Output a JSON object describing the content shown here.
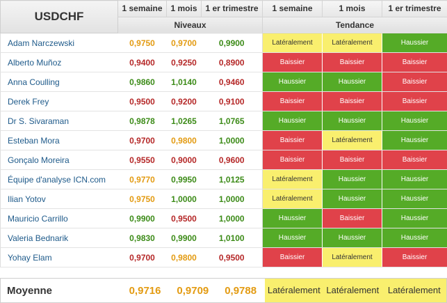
{
  "header": {
    "title": "USDCHF",
    "columns": [
      "1 semaine",
      "1 mois",
      "1 er trimestre",
      "1 semaine",
      "1 mois",
      "1 er trimestre"
    ],
    "group_levels": "Niveaux",
    "group_trend": "Tendance"
  },
  "rows": [
    {
      "name": "Adam Narczewski",
      "levels": [
        "0,9750",
        "0,9700",
        "0,9900"
      ],
      "level_colors": [
        "orange",
        "orange",
        "green"
      ],
      "trends": [
        "Latéralement",
        "Latéralement",
        "Haussier"
      ],
      "trend_colors": [
        "yellow",
        "yellow",
        "green"
      ]
    },
    {
      "name": "Alberto Muñoz",
      "levels": [
        "0,9400",
        "0,9250",
        "0,8900"
      ],
      "level_colors": [
        "red",
        "red",
        "red"
      ],
      "trends": [
        "Baissier",
        "Baissier",
        "Baissier"
      ],
      "trend_colors": [
        "red",
        "red",
        "red"
      ]
    },
    {
      "name": "Anna Coulling",
      "levels": [
        "0,9860",
        "1,0140",
        "0,9460"
      ],
      "level_colors": [
        "green",
        "green",
        "red"
      ],
      "trends": [
        "Haussier",
        "Haussier",
        "Baissier"
      ],
      "trend_colors": [
        "green",
        "green",
        "red"
      ]
    },
    {
      "name": "Derek Frey",
      "levels": [
        "0,9500",
        "0,9200",
        "0,9100"
      ],
      "level_colors": [
        "red",
        "red",
        "red"
      ],
      "trends": [
        "Baissier",
        "Baissier",
        "Baissier"
      ],
      "trend_colors": [
        "red",
        "red",
        "red"
      ]
    },
    {
      "name": "Dr S. Sivaraman",
      "levels": [
        "0,9878",
        "1,0265",
        "1,0765"
      ],
      "level_colors": [
        "green",
        "green",
        "green"
      ],
      "trends": [
        "Haussier",
        "Haussier",
        "Haussier"
      ],
      "trend_colors": [
        "green",
        "green",
        "green"
      ]
    },
    {
      "name": "Esteban Mora",
      "levels": [
        "0,9700",
        "0,9800",
        "1,0000"
      ],
      "level_colors": [
        "red",
        "orange",
        "green"
      ],
      "trends": [
        "Baissier",
        "Latéralement",
        "Haussier"
      ],
      "trend_colors": [
        "red",
        "yellow",
        "green"
      ]
    },
    {
      "name": "Gonçalo Moreira",
      "levels": [
        "0,9550",
        "0,9000",
        "0,9600"
      ],
      "level_colors": [
        "red",
        "red",
        "red"
      ],
      "trends": [
        "Baissier",
        "Baissier",
        "Baissier"
      ],
      "trend_colors": [
        "red",
        "red",
        "red"
      ]
    },
    {
      "name": "Équipe d'analyse ICN.com",
      "levels": [
        "0,9770",
        "0,9950",
        "1,0125"
      ],
      "level_colors": [
        "orange",
        "green",
        "green"
      ],
      "trends": [
        "Latéralement",
        "Haussier",
        "Haussier"
      ],
      "trend_colors": [
        "yellow",
        "green",
        "green"
      ]
    },
    {
      "name": "Ilian Yotov",
      "levels": [
        "0,9750",
        "1,0000",
        "1,0000"
      ],
      "level_colors": [
        "orange",
        "green",
        "green"
      ],
      "trends": [
        "Latéralement",
        "Haussier",
        "Haussier"
      ],
      "trend_colors": [
        "yellow",
        "green",
        "green"
      ]
    },
    {
      "name": "Mauricio Carrillo",
      "levels": [
        "0,9900",
        "0,9500",
        "1,0000"
      ],
      "level_colors": [
        "green",
        "red",
        "green"
      ],
      "trends": [
        "Haussier",
        "Baissier",
        "Haussier"
      ],
      "trend_colors": [
        "green",
        "red",
        "green"
      ]
    },
    {
      "name": "Valeria Bednarik",
      "levels": [
        "0,9830",
        "0,9900",
        "1,0100"
      ],
      "level_colors": [
        "green",
        "green",
        "green"
      ],
      "trends": [
        "Haussier",
        "Haussier",
        "Haussier"
      ],
      "trend_colors": [
        "green",
        "green",
        "green"
      ]
    },
    {
      "name": "Yohay Elam",
      "levels": [
        "0,9700",
        "0,9800",
        "0,9500"
      ],
      "level_colors": [
        "red",
        "orange",
        "red"
      ],
      "trends": [
        "Baissier",
        "Latéralement",
        "Baissier"
      ],
      "trend_colors": [
        "red",
        "yellow",
        "red"
      ]
    }
  ],
  "average": {
    "label": "Moyenne",
    "levels": [
      "0,9716",
      "0,9709",
      "0,9788"
    ],
    "trends": [
      "Latéralement",
      "Latéralement",
      "Latéralement"
    ]
  },
  "colors": {
    "level_orange": "#e39b12",
    "level_red": "#b52828",
    "level_green": "#3c8b18",
    "trend_yellow": "#f9ef6e",
    "trend_red": "#e0424a",
    "trend_green": "#55ab27",
    "name_link": "#1e5a8a"
  }
}
